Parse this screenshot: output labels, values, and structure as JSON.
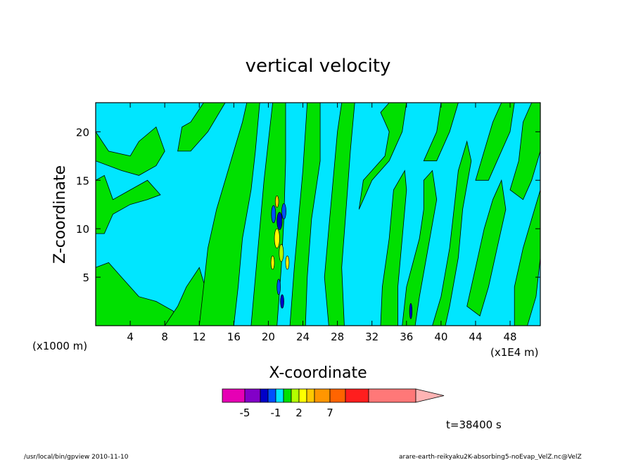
{
  "chart_data": {
    "type": "heatmap",
    "title": "vertical velocity",
    "xlabel": "X-coordinate",
    "ylabel": "Z-coordinate",
    "x_unit_left": "(x1000 m)",
    "x_unit_right": "(x1E4 m)",
    "xlim": [
      0,
      51.5
    ],
    "ylim": [
      0,
      23
    ],
    "x_ticks": [
      4,
      8,
      12,
      16,
      20,
      24,
      28,
      32,
      36,
      40,
      44,
      48
    ],
    "y_ticks": [
      5,
      10,
      15,
      20
    ],
    "time_label": "t=38400 s",
    "colorbar": {
      "colors": [
        "#e600b4",
        "#8200c8",
        "#0000c8",
        "#0050ff",
        "#00e6ff",
        "#00e000",
        "#b4ff00",
        "#ffff00",
        "#ffc800",
        "#ff9600",
        "#ff6400",
        "#ff1e1e",
        "#ff7878",
        "#ffb4b4"
      ],
      "tick_labels": [
        "-5",
        "-1",
        "2",
        "7"
      ],
      "levels": [
        -5,
        -1,
        2,
        7
      ]
    },
    "background_color": "#00e6ff",
    "positive_color": "#00e000"
  },
  "footer": {
    "left": "/usr/local/bin/gpview   2010-11-10",
    "right": "arare-earth-reikyaku2K-absorbing5-noEvap_VelZ.nc@VelZ"
  }
}
